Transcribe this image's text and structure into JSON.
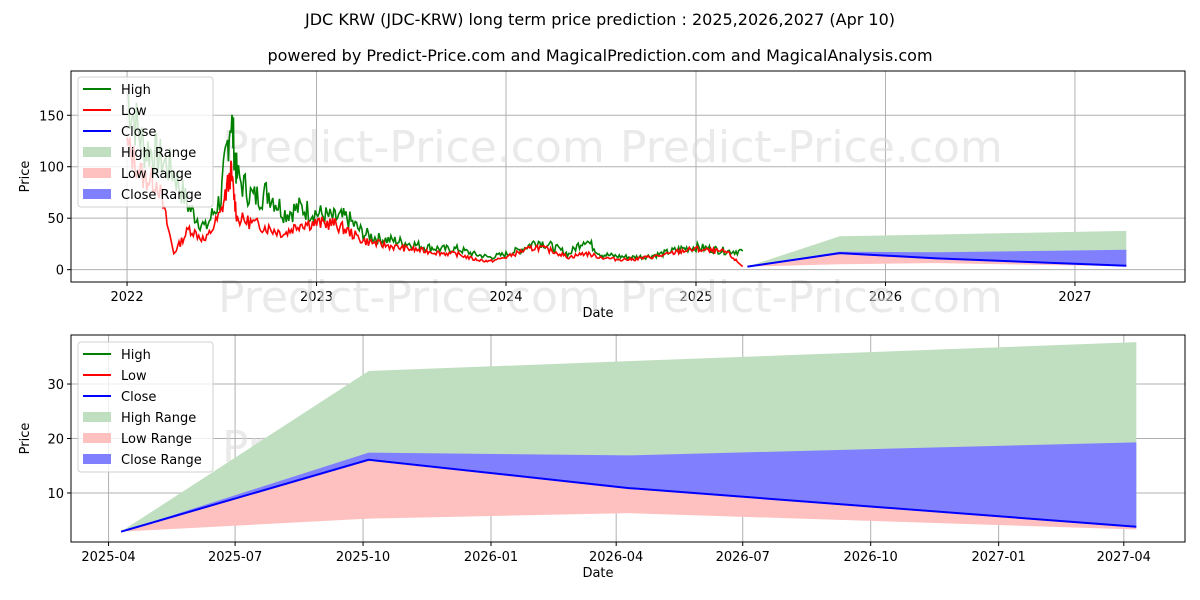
{
  "header": {
    "title": "JDC KRW (JDC-KRW) long term price prediction : 2025,2026,2027 (Apr 10)",
    "subtitle": "powered by Predict-Price.com and MagicalPrediction.com and MagicalAnalysis.com"
  },
  "watermark": "Predict-Price.com",
  "colors": {
    "high": "#008000",
    "low": "#ff0000",
    "close": "#0000ff",
    "high_range": "#c0dfc0",
    "low_range": "#ffc0c0",
    "close_range": "#8080ff",
    "grid": "#b0b0b0"
  },
  "legend": [
    "High",
    "Low",
    "Close",
    "High Range",
    "Low Range",
    "Close Range"
  ],
  "chart_data": [
    {
      "type": "line",
      "title": "",
      "xlabel": "Date",
      "ylabel": "Price",
      "ylim": [
        -12,
        193
      ],
      "xlim": [
        "2021-09-15",
        "2027-08-01"
      ],
      "grid": true,
      "legend_position": "upper left",
      "x_ticks": [
        "2022",
        "2023",
        "2024",
        "2025",
        "2026",
        "2027"
      ],
      "y_ticks": [
        0,
        50,
        100,
        150
      ],
      "series": [
        {
          "name": "High",
          "x": [
            "2022-01",
            "2022-02",
            "2022-03",
            "2022-04",
            "2022-05",
            "2022-06",
            "2022-07",
            "2022-07-20",
            "2022-08",
            "2022-09",
            "2022-10",
            "2022-11",
            "2022-12",
            "2023-01",
            "2023-02",
            "2023-03",
            "2023-04",
            "2023-05",
            "2023-06",
            "2023-07",
            "2023-08",
            "2023-09",
            "2023-10",
            "2023-11",
            "2023-12",
            "2024-01",
            "2024-02",
            "2024-03",
            "2024-04",
            "2024-05",
            "2024-06",
            "2024-07",
            "2024-08",
            "2024-09",
            "2024-10",
            "2024-11",
            "2024-12",
            "2025-01",
            "2025-02",
            "2025-03",
            "2025-04-01"
          ],
          "values": [
            170,
            120,
            110,
            95,
            60,
            40,
            70,
            150,
            90,
            70,
            75,
            55,
            60,
            55,
            50,
            50,
            35,
            30,
            28,
            25,
            22,
            20,
            20,
            15,
            12,
            15,
            20,
            28,
            22,
            15,
            30,
            15,
            13,
            12,
            13,
            16,
            20,
            22,
            20,
            18,
            18
          ]
        },
        {
          "name": "Low",
          "x": [
            "2022-01",
            "2022-02",
            "2022-03",
            "2022-04",
            "2022-05",
            "2022-06",
            "2022-07",
            "2022-07-20",
            "2022-08",
            "2022-09",
            "2022-10",
            "2022-11",
            "2022-12",
            "2023-01",
            "2023-02",
            "2023-03",
            "2023-04",
            "2023-05",
            "2023-06",
            "2023-07",
            "2023-08",
            "2023-09",
            "2023-10",
            "2023-11",
            "2023-12",
            "2024-01",
            "2024-02",
            "2024-03",
            "2024-04",
            "2024-05",
            "2024-06",
            "2024-07",
            "2024-08",
            "2024-09",
            "2024-10",
            "2024-11",
            "2024-12",
            "2025-01",
            "2025-02",
            "2025-03",
            "2025-04-01"
          ],
          "values": [
            120,
            90,
            85,
            16,
            40,
            28,
            55,
            95,
            50,
            45,
            40,
            35,
            45,
            45,
            45,
            38,
            28,
            25,
            22,
            20,
            18,
            16,
            15,
            10,
            8,
            12,
            18,
            22,
            18,
            12,
            16,
            12,
            10,
            10,
            12,
            14,
            18,
            20,
            18,
            17,
            3
          ]
        },
        {
          "name": "Close",
          "x": [
            "2025-04-10",
            "2025-10-05",
            "2026-04-10",
            "2027-04-10"
          ],
          "values": [
            2.9,
            16.1,
            10.9,
            3.8
          ]
        }
      ]
    },
    {
      "type": "area",
      "title": "",
      "xlabel": "Date",
      "ylabel": "Price",
      "ylim": [
        1,
        39
      ],
      "xlim": [
        "2025-03-05",
        "2027-05-15"
      ],
      "grid": true,
      "legend_position": "upper left",
      "x_ticks": [
        "2025-04",
        "2025-07",
        "2025-10",
        "2026-01",
        "2026-04",
        "2026-07",
        "2026-10",
        "2027-01",
        "2027-04"
      ],
      "y_ticks": [
        10,
        20,
        30
      ],
      "x": [
        "2025-04-10",
        "2025-10-05",
        "2026-04-10",
        "2027-04-10"
      ],
      "series": [
        {
          "name": "Close",
          "values": [
            2.9,
            16.1,
            10.9,
            3.8
          ]
        },
        {
          "name": "High Range",
          "upper": [
            2.9,
            32.4,
            34.2,
            37.7
          ],
          "lower": [
            2.9,
            16.1,
            10.9,
            3.8
          ]
        },
        {
          "name": "Low Range",
          "upper": [
            2.9,
            16.1,
            10.9,
            3.8
          ],
          "lower": [
            2.9,
            5.3,
            6.3,
            3.3
          ]
        },
        {
          "name": "Close Range",
          "upper": [
            2.9,
            17.4,
            16.9,
            19.3
          ],
          "lower": [
            2.9,
            16.1,
            10.9,
            3.8
          ]
        }
      ]
    }
  ]
}
